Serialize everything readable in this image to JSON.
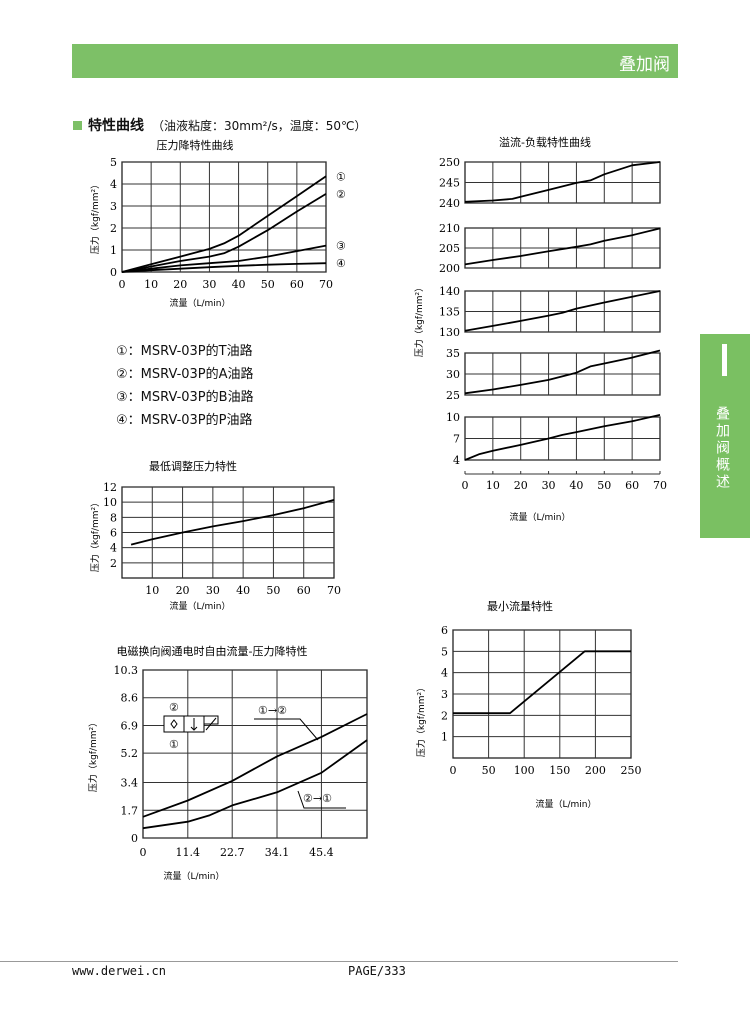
{
  "header": {
    "title": "叠加阀"
  },
  "side_tab": {
    "label": "叠加阀概述"
  },
  "section": {
    "title": "特性曲线",
    "conditions": "（油液粘度：30mm²/s，温度：50℃）"
  },
  "legend": [
    "①：MSRV-03P的T油路",
    "②：MSRV-03P的A油路",
    "③：MSRV-03P的B油路",
    "④：MSRV-03P的P油路"
  ],
  "footer": {
    "website": "www.derwei.cn",
    "page": "PAGE/333"
  },
  "colors": {
    "accent": "#7dc067"
  },
  "chart_data": [
    {
      "id": "pressure-drop",
      "type": "line",
      "title": "压力降特性曲线",
      "xlabel": "流量（L/min）",
      "ylabel": "压力（kgf/mm²）",
      "xlim": [
        0,
        70
      ],
      "ylim": [
        0,
        5
      ],
      "xticks": [
        0,
        10,
        20,
        30,
        40,
        50,
        60,
        70
      ],
      "yticks": [
        0,
        1,
        2,
        3,
        4,
        5
      ],
      "grid": true,
      "series": [
        {
          "name": "①",
          "x": [
            0,
            10,
            20,
            30,
            35,
            40,
            50,
            60,
            70
          ],
          "y": [
            0,
            0.35,
            0.7,
            1.05,
            1.3,
            1.65,
            2.55,
            3.45,
            4.35
          ]
        },
        {
          "name": "②",
          "x": [
            0,
            10,
            20,
            30,
            35,
            40,
            50,
            60,
            70
          ],
          "y": [
            0,
            0.25,
            0.5,
            0.7,
            0.85,
            1.15,
            1.9,
            2.75,
            3.55
          ]
        },
        {
          "name": "③",
          "x": [
            0,
            10,
            20,
            30,
            40,
            50,
            60,
            70
          ],
          "y": [
            0,
            0.15,
            0.3,
            0.4,
            0.5,
            0.7,
            0.95,
            1.2
          ]
        },
        {
          "name": "④",
          "x": [
            0,
            10,
            20,
            30,
            40,
            50,
            60,
            70
          ],
          "y": [
            0,
            0.08,
            0.15,
            0.22,
            0.28,
            0.33,
            0.37,
            0.4
          ]
        }
      ]
    },
    {
      "id": "min-adjust",
      "type": "line",
      "title": "最低调整压力特性",
      "xlabel": "流量（L/min）",
      "ylabel": "压力（kgf/mm²）",
      "xlim": [
        0,
        70
      ],
      "ylim": [
        0,
        12
      ],
      "xticks": [
        10,
        20,
        30,
        40,
        50,
        60,
        70
      ],
      "yticks": [
        2,
        4,
        6,
        8,
        10,
        12
      ],
      "grid": true,
      "series": [
        {
          "name": "",
          "x": [
            3,
            10,
            20,
            30,
            40,
            50,
            60,
            70
          ],
          "y": [
            4.4,
            5.1,
            6,
            6.8,
            7.5,
            8.3,
            9.2,
            10.3
          ]
        }
      ]
    },
    {
      "id": "relief-load",
      "type": "line",
      "title": "溢流-负载特性曲线",
      "xlabel": "流量（L/min）",
      "ylabel": "压力（kgf/mm²）",
      "xlim": [
        0,
        70
      ],
      "xticks": [
        0,
        10,
        20,
        30,
        40,
        50,
        60,
        70
      ],
      "grid": true,
      "panels": [
        {
          "ylim": [
            240,
            250
          ],
          "yticks": [
            240,
            245,
            250
          ],
          "x": [
            0,
            10,
            17,
            20,
            30,
            40,
            45,
            50,
            60,
            70
          ],
          "y": [
            240.3,
            240.6,
            241,
            241.5,
            243.2,
            244.9,
            245.5,
            247,
            249.2,
            250
          ]
        },
        {
          "ylim": [
            200,
            210
          ],
          "yticks": [
            200,
            205,
            210
          ],
          "x": [
            0,
            10,
            20,
            30,
            40,
            45,
            50,
            60,
            70
          ],
          "y": [
            200.9,
            202,
            203,
            204.2,
            205.3,
            205.9,
            206.8,
            208.2,
            209.9
          ]
        },
        {
          "ylim": [
            130,
            140
          ],
          "yticks": [
            130,
            135,
            140
          ],
          "x": [
            0,
            10,
            20,
            30,
            35,
            40,
            50,
            60,
            70
          ],
          "y": [
            130.3,
            131.5,
            132.7,
            134,
            134.7,
            135.7,
            137.2,
            138.6,
            140
          ]
        },
        {
          "ylim": [
            25,
            35
          ],
          "yticks": [
            25,
            30,
            35
          ],
          "x": [
            0,
            10,
            20,
            30,
            40,
            45,
            50,
            60,
            70
          ],
          "y": [
            25.4,
            26.3,
            27.4,
            28.6,
            30.3,
            31.8,
            32.5,
            33.9,
            35.6
          ]
        },
        {
          "ylim": [
            4,
            10
          ],
          "yticks": [
            4,
            7,
            10
          ],
          "x": [
            0,
            5,
            10,
            20,
            30,
            35,
            40,
            50,
            60,
            70
          ],
          "y": [
            4,
            4.8,
            5.3,
            6.1,
            7,
            7.5,
            7.9,
            8.7,
            9.4,
            10.3
          ]
        }
      ]
    },
    {
      "id": "min-flow",
      "type": "line",
      "title": "最小流量特性",
      "xlabel": "流量（L/min）",
      "ylabel": "压力（kgf/mm²）",
      "xlim": [
        0,
        250
      ],
      "ylim": [
        0,
        6
      ],
      "xticks": [
        0,
        50,
        100,
        150,
        200,
        250
      ],
      "yticks": [
        1,
        2,
        3,
        4,
        5,
        6
      ],
      "grid": true,
      "series": [
        {
          "name": "",
          "x": [
            0,
            80,
            185,
            250
          ],
          "y": [
            2.1,
            2.1,
            5,
            5
          ]
        }
      ]
    },
    {
      "id": "solenoid-flow",
      "type": "line",
      "title": "电磁换向阀通电时自由流量-压力降特性",
      "xlabel": "流量（L/min）",
      "ylabel": "压力（kgf/mm²）",
      "xlim": [
        0,
        57
      ],
      "ylim": [
        0,
        10.3
      ],
      "xticks": [
        0,
        11.4,
        22.7,
        34.1,
        45.4
      ],
      "yticks": [
        0,
        1.7,
        3.4,
        5.2,
        6.9,
        8.6,
        10.3
      ],
      "grid": true,
      "symbol_ports": [
        "②",
        "①"
      ],
      "series": [
        {
          "name": "①→②",
          "x": [
            0,
            11.4,
            22.7,
            34.1,
            45.4,
            57
          ],
          "y": [
            1.3,
            2.3,
            3.5,
            5,
            6.2,
            7.6
          ]
        },
        {
          "name": "②→①",
          "x": [
            0,
            11.4,
            17,
            22.7,
            34.1,
            45.4,
            57
          ],
          "y": [
            0.6,
            1.0,
            1.4,
            2.0,
            2.8,
            4.0,
            6.0
          ]
        }
      ]
    }
  ]
}
